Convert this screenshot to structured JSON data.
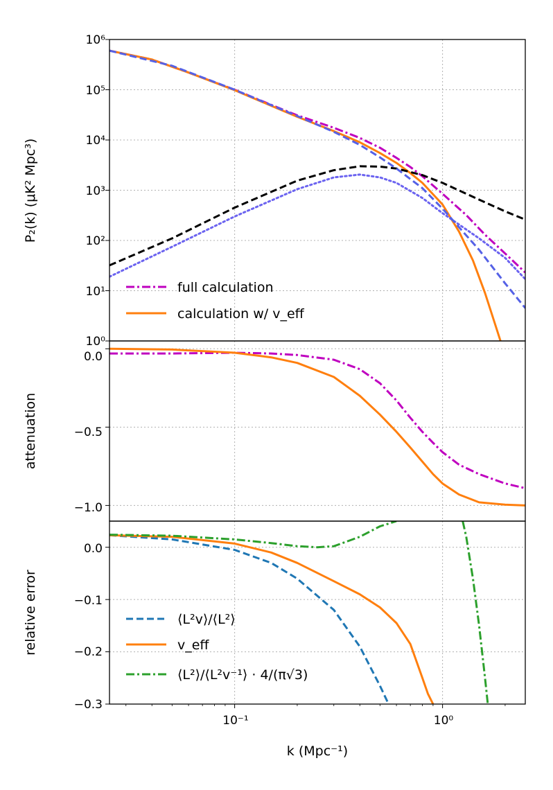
{
  "colors": {
    "full": "#bf00bf",
    "veff": "#ff7f0e",
    "black_dash": "#000000",
    "blue_dash": "#5561e6",
    "blue_dot": "#6b63f0",
    "tab_blue": "#1f77b4",
    "tab_green": "#2ca02c",
    "grid": "#b0b0b0"
  },
  "labels": {
    "xlabel": "k (Mpc⁻¹)",
    "ylabel_top": "P₂(k) (μK² Mpc³)",
    "ylabel_mid": "attenuation",
    "ylabel_bot": "relative error",
    "x_ticks": [
      "10⁻¹",
      "10⁰"
    ],
    "y_ticks_top": [
      "10⁰",
      "10¹",
      "10²",
      "10³",
      "10⁴",
      "10⁵",
      "10⁶"
    ],
    "y_ticks_mid": [
      "0.0",
      "−0.5",
      "−1.0"
    ],
    "y_ticks_bot": [
      "0.0",
      "−0.1",
      "−0.2",
      "−0.3"
    ]
  },
  "legends": {
    "top": [
      "full calculation",
      "calculation w/ v_eff"
    ],
    "bottom": [
      "⟨L²v⟩/⟨L²⟩",
      "v_eff",
      "⟨L²⟩/⟨L²v⁻¹⟩ · 4/(π√3)"
    ]
  },
  "chart_data": [
    {
      "type": "line",
      "panel": "top",
      "xscale": "log",
      "yscale": "log",
      "xlim": [
        0.025,
        2.5
      ],
      "ylim": [
        1,
        1000000
      ],
      "grid": true,
      "legend_position": "lower-left",
      "series": [
        {
          "name": "full calculation",
          "style": "dashdot",
          "color": "#bf00bf",
          "x": [
            0.025,
            0.04,
            0.06,
            0.1,
            0.15,
            0.2,
            0.3,
            0.4,
            0.5,
            0.6,
            0.7,
            0.8,
            1.0,
            1.3,
            1.6,
            2.0,
            2.5
          ],
          "y": [
            600000,
            400000,
            220000,
            100000,
            50000,
            31000,
            17500,
            11000,
            7000,
            4400,
            2900,
            1900,
            850,
            320,
            130,
            55,
            23
          ]
        },
        {
          "name": "calculation w/ v_eff",
          "style": "solid",
          "color": "#ff7f0e",
          "x": [
            0.025,
            0.04,
            0.06,
            0.1,
            0.15,
            0.2,
            0.3,
            0.4,
            0.5,
            0.6,
            0.7,
            0.8,
            1.0,
            1.2,
            1.4,
            1.6,
            1.8,
            1.9
          ],
          "y": [
            600000,
            400000,
            220000,
            98000,
            48000,
            29000,
            15000,
            9000,
            5500,
            3500,
            2200,
            1400,
            520,
            150,
            40,
            9,
            2,
            1
          ]
        },
        {
          "style": "dashed",
          "color": "#000000",
          "x": [
            0.025,
            0.05,
            0.1,
            0.2,
            0.3,
            0.4,
            0.5,
            0.6,
            0.8,
            1.0,
            1.5,
            2.0,
            2.5
          ],
          "y": [
            32,
            110,
            450,
            1550,
            2500,
            3000,
            2950,
            2700,
            2000,
            1400,
            650,
            380,
            260
          ]
        },
        {
          "style": "dotted",
          "color": "#6b63f0",
          "x": [
            0.025,
            0.05,
            0.1,
            0.2,
            0.3,
            0.4,
            0.5,
            0.6,
            0.8,
            1.0,
            1.5,
            2.0,
            2.5
          ],
          "y": [
            19,
            75,
            300,
            1050,
            1800,
            2050,
            1800,
            1400,
            700,
            350,
            110,
            45,
            17
          ]
        },
        {
          "style": "dashed",
          "color": "#5561e6",
          "x": [
            0.025,
            0.05,
            0.1,
            0.2,
            0.3,
            0.4,
            0.5,
            0.6,
            0.8,
            1.0,
            1.5,
            2.0,
            2.5
          ],
          "y": [
            600000,
            300000,
            100000,
            30000,
            14500,
            8000,
            4500,
            2700,
            1100,
            430,
            65,
            14,
            4.5
          ]
        }
      ]
    },
    {
      "type": "line",
      "panel": "middle",
      "xscale": "log",
      "xlim": [
        0.025,
        2.5
      ],
      "ylim": [
        -1.1,
        0.05
      ],
      "ylabel": "attenuation",
      "grid": true,
      "series": [
        {
          "name": "full calculation",
          "style": "dashdot",
          "color": "#bf00bf",
          "x": [
            0.025,
            0.05,
            0.1,
            0.15,
            0.2,
            0.3,
            0.4,
            0.5,
            0.6,
            0.7,
            0.8,
            0.9,
            1.0,
            1.2,
            1.5,
            2.0,
            2.5
          ],
          "y": [
            -0.03,
            -0.03,
            -0.025,
            -0.03,
            -0.04,
            -0.07,
            -0.13,
            -0.22,
            -0.33,
            -0.44,
            -0.53,
            -0.6,
            -0.66,
            -0.74,
            -0.8,
            -0.86,
            -0.89
          ]
        },
        {
          "name": "calculation w/ v_eff",
          "style": "solid",
          "color": "#ff7f0e",
          "x": [
            0.025,
            0.05,
            0.1,
            0.15,
            0.2,
            0.3,
            0.4,
            0.5,
            0.6,
            0.7,
            0.8,
            0.9,
            1.0,
            1.2,
            1.5,
            2.0,
            2.5
          ],
          "y": [
            0.0,
            -0.005,
            -0.025,
            -0.055,
            -0.09,
            -0.18,
            -0.3,
            -0.42,
            -0.53,
            -0.63,
            -0.72,
            -0.8,
            -0.86,
            -0.93,
            -0.98,
            -0.995,
            -1.0
          ]
        }
      ]
    },
    {
      "type": "line",
      "panel": "bottom",
      "xscale": "log",
      "xlim": [
        0.025,
        2.5
      ],
      "ylim": [
        -0.3,
        0.05
      ],
      "xlabel": "k (Mpc⁻¹)",
      "ylabel": "relative error",
      "grid": true,
      "legend_position": "lower-left",
      "series": [
        {
          "name": "⟨L²v⟩/⟨L²⟩",
          "style": "dashed",
          "color": "#1f77b4",
          "x": [
            0.025,
            0.05,
            0.1,
            0.15,
            0.2,
            0.3,
            0.4,
            0.5,
            0.55
          ],
          "y": [
            0.023,
            0.015,
            -0.005,
            -0.03,
            -0.06,
            -0.12,
            -0.19,
            -0.265,
            -0.3
          ]
        },
        {
          "name": "v_eff",
          "style": "solid",
          "color": "#ff7f0e",
          "x": [
            0.025,
            0.05,
            0.1,
            0.15,
            0.2,
            0.3,
            0.4,
            0.5,
            0.6,
            0.7,
            0.8,
            0.85,
            0.9
          ],
          "y": [
            0.023,
            0.02,
            0.007,
            -0.01,
            -0.03,
            -0.065,
            -0.09,
            -0.115,
            -0.145,
            -0.185,
            -0.25,
            -0.28,
            -0.3
          ]
        },
        {
          "name": "⟨L²⟩/⟨L²v⁻¹⟩ · 4/(π√3)",
          "style": "dashdot",
          "color": "#2ca02c",
          "x": [
            0.025,
            0.05,
            0.1,
            0.15,
            0.2,
            0.25,
            0.3,
            0.4,
            0.5,
            0.6
          ],
          "y": [
            0.024,
            0.022,
            0.015,
            0.008,
            0.002,
            0.0,
            0.002,
            0.02,
            0.04,
            0.05
          ]
        },
        {
          "style": "dashdot",
          "color": "#2ca02c",
          "x": [
            1.25,
            1.3,
            1.4,
            1.5,
            1.6,
            1.65
          ],
          "y": [
            0.05,
            0.02,
            -0.06,
            -0.15,
            -0.25,
            -0.3
          ]
        }
      ]
    }
  ]
}
